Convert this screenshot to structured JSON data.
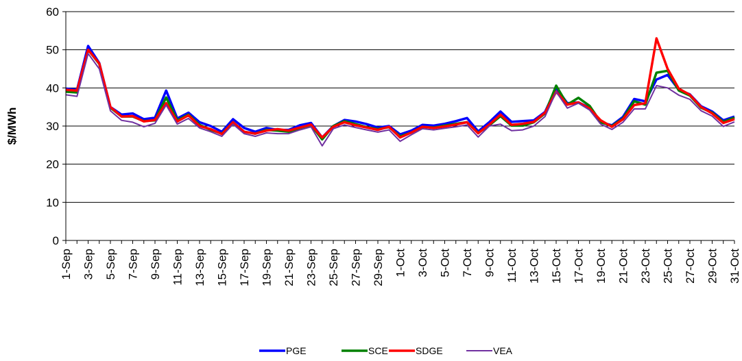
{
  "chart_data": {
    "type": "line",
    "title": "",
    "xlabel": "",
    "ylabel": "$/MWh",
    "ylim": [
      0,
      60
    ],
    "yticks": [
      0,
      10,
      20,
      30,
      40,
      50,
      60
    ],
    "grid": true,
    "legend_position": "bottom",
    "x": [
      "1-Sep",
      "2-Sep",
      "3-Sep",
      "4-Sep",
      "5-Sep",
      "6-Sep",
      "7-Sep",
      "8-Sep",
      "9-Sep",
      "10-Sep",
      "11-Sep",
      "12-Sep",
      "13-Sep",
      "14-Sep",
      "15-Sep",
      "16-Sep",
      "17-Sep",
      "18-Sep",
      "19-Sep",
      "20-Sep",
      "21-Sep",
      "22-Sep",
      "23-Sep",
      "24-Sep",
      "25-Sep",
      "26-Sep",
      "27-Sep",
      "28-Sep",
      "29-Sep",
      "30-Sep",
      "1-Oct",
      "2-Oct",
      "3-Oct",
      "4-Oct",
      "5-Oct",
      "6-Oct",
      "7-Oct",
      "8-Oct",
      "9-Oct",
      "10-Oct",
      "11-Oct",
      "12-Oct",
      "13-Oct",
      "14-Oct",
      "15-Oct",
      "16-Oct",
      "17-Oct",
      "18-Oct",
      "19-Oct",
      "20-Oct",
      "21-Oct",
      "22-Oct",
      "23-Oct",
      "24-Oct",
      "25-Oct",
      "26-Oct",
      "27-Oct",
      "28-Oct",
      "29-Oct",
      "30-Oct",
      "31-Oct"
    ],
    "tick_labels": [
      "1-Sep",
      "3-Sep",
      "5-Sep",
      "7-Sep",
      "9-Sep",
      "11-Sep",
      "13-Sep",
      "15-Sep",
      "17-Sep",
      "19-Sep",
      "21-Sep",
      "23-Sep",
      "25-Sep",
      "27-Sep",
      "29-Sep",
      "1-Oct",
      "3-Oct",
      "5-Oct",
      "7-Oct",
      "9-Oct",
      "11-Oct",
      "13-Oct",
      "15-Oct",
      "17-Oct",
      "19-Oct",
      "21-Oct",
      "23-Oct",
      "25-Oct",
      "27-Oct",
      "29-Oct",
      "31-Oct"
    ],
    "series": [
      {
        "name": "PGE",
        "color": "#0000ff",
        "values": [
          39.8,
          39.5,
          51.0,
          46.5,
          35.0,
          33.0,
          33.3,
          31.8,
          32.2,
          39.3,
          32.0,
          33.5,
          31.0,
          30.0,
          28.5,
          31.8,
          29.5,
          28.5,
          29.5,
          29.0,
          29.0,
          30.2,
          30.8,
          27.0,
          30.0,
          31.6,
          31.2,
          30.5,
          29.6,
          30.0,
          27.8,
          28.8,
          30.3,
          30.1,
          30.6,
          31.3,
          32.1,
          28.6,
          31.0,
          33.8,
          31.1,
          31.3,
          31.5,
          33.7,
          40.0,
          36.0,
          36.2,
          34.8,
          31.0,
          30.2,
          32.4,
          37.1,
          36.5,
          42.2,
          43.4,
          39.5,
          38.3,
          35.2,
          33.8,
          31.5,
          32.5
        ]
      },
      {
        "name": "SCE",
        "color": "#008000",
        "values": [
          39.0,
          38.8,
          50.0,
          46.3,
          34.8,
          32.5,
          32.5,
          31.3,
          31.5,
          37.5,
          31.5,
          33.0,
          30.3,
          29.0,
          28.0,
          31.0,
          28.5,
          28.0,
          29.0,
          28.8,
          28.5,
          29.5,
          30.3,
          26.5,
          30.0,
          31.3,
          30.5,
          29.7,
          29.2,
          29.7,
          27.3,
          28.3,
          29.8,
          29.6,
          30.1,
          30.6,
          31.0,
          28.2,
          30.2,
          32.6,
          30.1,
          30.1,
          31.0,
          33.3,
          40.6,
          35.6,
          37.4,
          35.3,
          31.0,
          30.0,
          32.0,
          36.5,
          35.6,
          44.0,
          44.5,
          39.3,
          38.0,
          34.8,
          33.5,
          31.1,
          32.2
        ]
      },
      {
        "name": "SDGE",
        "color": "#ff0000",
        "values": [
          39.5,
          39.3,
          50.0,
          46.4,
          35.0,
          32.5,
          32.6,
          31.2,
          31.6,
          36.0,
          31.2,
          32.8,
          30.0,
          29.2,
          27.9,
          31.0,
          28.5,
          28.0,
          28.8,
          29.2,
          28.8,
          29.6,
          30.4,
          27.0,
          29.8,
          31.0,
          30.2,
          29.6,
          29.0,
          29.8,
          27.0,
          28.3,
          29.8,
          29.5,
          29.9,
          30.4,
          31.0,
          28.1,
          30.4,
          33.0,
          30.3,
          30.6,
          31.1,
          33.5,
          39.0,
          35.6,
          36.2,
          34.6,
          31.5,
          29.8,
          31.8,
          35.5,
          36.0,
          53.0,
          45.0,
          39.8,
          38.2,
          35.0,
          33.3,
          30.8,
          31.8
        ]
      },
      {
        "name": "VEA",
        "color": "#7030a0",
        "values": [
          38.2,
          37.8,
          49.0,
          45.0,
          34.0,
          31.5,
          31.0,
          29.8,
          30.7,
          35.5,
          30.5,
          32.0,
          29.5,
          28.5,
          27.3,
          30.5,
          28.0,
          27.3,
          28.2,
          28.0,
          28.0,
          29.0,
          29.8,
          24.8,
          29.3,
          30.3,
          29.6,
          29.0,
          28.4,
          29.0,
          26.0,
          27.7,
          29.3,
          29.0,
          29.4,
          29.8,
          30.3,
          27.1,
          30.0,
          30.5,
          28.8,
          29.0,
          30.0,
          32.5,
          39.0,
          34.7,
          36.0,
          34.2,
          30.5,
          29.1,
          31.0,
          34.5,
          34.5,
          40.6,
          40.0,
          38.1,
          37.0,
          34.0,
          32.6,
          29.9,
          31.1
        ]
      }
    ]
  }
}
